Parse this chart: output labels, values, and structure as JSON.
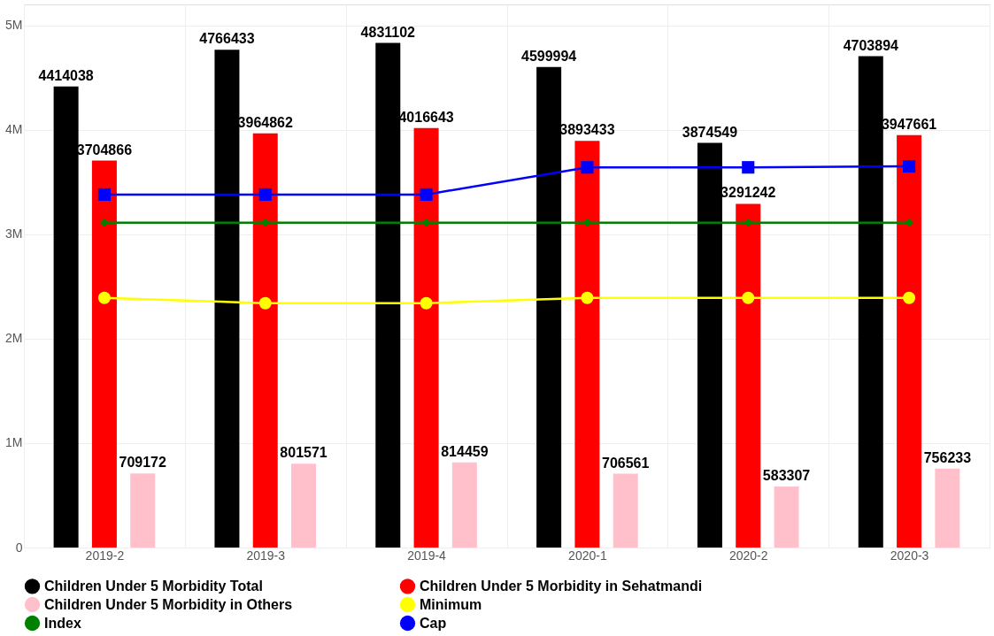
{
  "chart_data": {
    "type": "bar",
    "categories": [
      "2019-2",
      "2019-3",
      "2019-4",
      "2020-1",
      "2020-2",
      "2020-3"
    ],
    "ylim": [
      0,
      5200000
    ],
    "yticks": [
      0,
      {
        "value": 1000000,
        "label": "1M"
      },
      {
        "value": 2000000,
        "label": "2M"
      },
      {
        "value": 3000000,
        "label": "3M"
      },
      {
        "value": 4000000,
        "label": "4M"
      },
      {
        "value": 5000000,
        "label": "5M"
      }
    ],
    "grid": true,
    "legend": "bottom",
    "series": [
      {
        "name": "Children Under 5 Morbidity Total",
        "color": "#000000",
        "values": [
          4414038,
          4766433,
          4831102,
          4599994,
          3874549,
          4703894
        ],
        "value_labels": [
          "4414038",
          "4766433",
          "4831102",
          "4599994",
          "3874549",
          "4703894"
        ]
      },
      {
        "name": "Children Under 5 Morbidity in Sehatmandi",
        "color": "#ff0000",
        "values": [
          3704866,
          3964862,
          4016643,
          3893433,
          3291242,
          3947661
        ],
        "value_labels": [
          "3704866",
          "3964862",
          "4016643",
          "3893433",
          "3291242",
          "3947661"
        ]
      },
      {
        "name": "Children Under 5 Morbidity in Others",
        "color": "#ffc0cb",
        "values": [
          709172,
          801571,
          814459,
          706561,
          583307,
          756233
        ],
        "value_labels": [
          "709172",
          "801571",
          "814459",
          "706561",
          "583307",
          "756233"
        ]
      },
      {
        "name": "Minimum",
        "type": "line",
        "marker": "circle",
        "color": "#ffff00",
        "values": [
          2390000,
          2340000,
          2340000,
          2390000,
          2390000,
          2390000
        ]
      },
      {
        "name": "Index",
        "type": "line",
        "marker": "diamond",
        "color": "#008000",
        "values": [
          3110000,
          3110000,
          3110000,
          3110000,
          3110000,
          3110000
        ]
      },
      {
        "name": "Cap",
        "type": "line",
        "marker": "square",
        "color": "#0000ff",
        "values": [
          3380000,
          3380000,
          3380000,
          3640000,
          3640000,
          3650000
        ]
      }
    ]
  }
}
